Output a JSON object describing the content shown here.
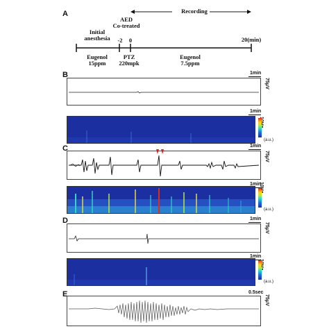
{
  "panels": {
    "A": {
      "letter": "A",
      "recording_label": "Recording",
      "aed_label_1": "AED",
      "aed_label_2": "Co-treated",
      "initial_label_1": "Initial",
      "initial_label_2": "anesthesia",
      "tick_minus2": "-2",
      "tick_0": "0",
      "tick_20": "20(min)",
      "eugenol1_line1": "Eugenol",
      "eugenol1_line2": "15ppm",
      "ptz_line1": "PTZ",
      "ptz_line2": "220mpk",
      "eugenol2_line1": "Eugenol",
      "eugenol2_line2": "7.5ppm"
    },
    "B": {
      "letter": "B",
      "trace_scale": "1min",
      "amp_scale": "75μV",
      "spec_scale": "1min",
      "freq_scale": "10Hz",
      "au": "(a.u.)"
    },
    "C": {
      "letter": "C",
      "trace_scale": "1min",
      "amp_scale": "75μV",
      "spec_scale": "1min",
      "freq_scale": "10Hz",
      "au": "(a.u.)"
    },
    "D": {
      "letter": "D",
      "trace_scale": "1min",
      "amp_scale": "75μV",
      "spec_scale": "1min",
      "freq_scale": "10Hz",
      "au": "(a.u.)"
    },
    "E": {
      "letter": "E",
      "trace_scale": "0.5sec",
      "amp_scale": "75μV"
    }
  },
  "colors": {
    "spectrogram_base": "#1c2fa0",
    "arrow_red": "#e02020"
  }
}
